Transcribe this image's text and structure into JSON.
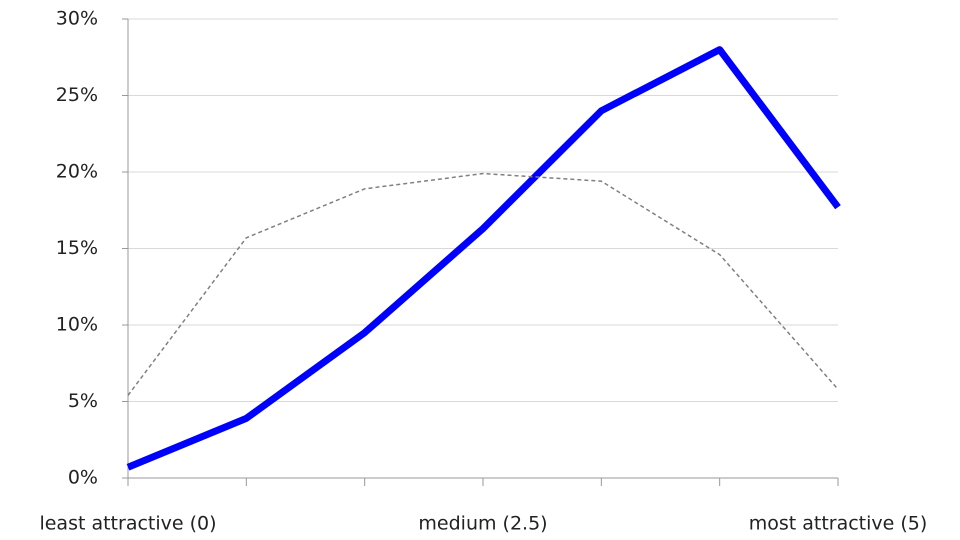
{
  "chart_data": {
    "type": "line",
    "categories": [
      "least attractive (0)",
      null,
      null,
      "medium (2.5)",
      null,
      null,
      "most attractive (5)"
    ],
    "series": [
      {
        "color": "#0000ff",
        "values": [
          0.7,
          3.9,
          9.5,
          16.3,
          24.0,
          28.0,
          17.7
        ]
      },
      {
        "color": "#808080",
        "dashed": true,
        "values": [
          5.4,
          15.7,
          18.9,
          19.9,
          19.4,
          14.6,
          5.8
        ]
      }
    ],
    "ylim": [
      0,
      30
    ],
    "yticks": [
      {
        "value": 0,
        "label": "0%"
      },
      {
        "value": 5,
        "label": "5%"
      },
      {
        "value": 10,
        "label": "10%"
      },
      {
        "value": 15,
        "label": "15%"
      },
      {
        "value": 20,
        "label": "20%"
      },
      {
        "value": 25,
        "label": "25%"
      },
      {
        "value": 30,
        "label": "30%"
      }
    ],
    "grid": true
  }
}
